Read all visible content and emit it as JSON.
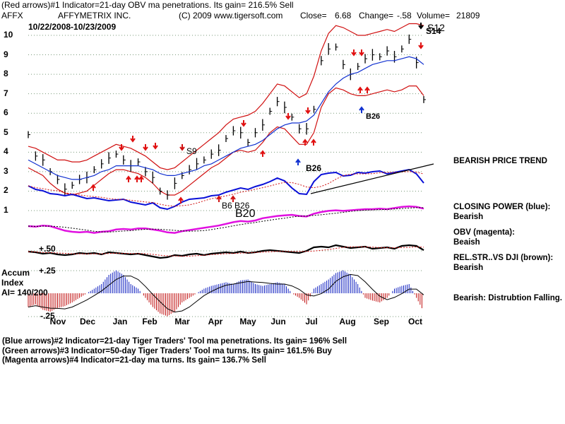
{
  "header": {
    "line1": "(Red arrows)#1 Indicator=21-day OBV ma penetrations. Its gain= 216.5% Sell",
    "ticker": "AFFX",
    "company": "AFFYMETRIX INC.",
    "copyright": "(C) 2009 www.tigersoft.com",
    "close_label": "Close=",
    "close_value": "6.68",
    "change_label": "Change=",
    "change_value": "-.58",
    "volume_label": "Volume=",
    "volume_value": "21809",
    "date_range": "10/22/2008-10/23/2009"
  },
  "side_panel": {
    "price_trend": "BEARISH PRICE TREND",
    "closing_power_label": "CLOSING POWER (blue):",
    "closing_power_value": "Bearish",
    "obv_label": "OBV (magenta):",
    "obv_value": "Beaish",
    "relstr_label": "REL.STR..VS DJI (brown):",
    "relstr_value": "Bearish",
    "accum_status": "Bearish:  Distrubtion Falling."
  },
  "footer": {
    "line1": "(Blue arrows)#2 Indicator=21-day Tiger Traders' Tool ma penetrations. Its gain= 196% Sell",
    "line2": "(Green arrows)#3 Indicator=50-day Tiger Traders' Tool ma turns. Its gain= 161.5% Buy",
    "line3": "(Magenta arrows)#4 Indicator=21-day ma turns. Its gain= 136.7% Sell"
  },
  "accum_panel": {
    "label1": "Accum",
    "label2": "Index",
    "label3": "AI= 140/200",
    "level_top": "+.25",
    "level_bottom": "-.25",
    "relstr_level": "+.50"
  },
  "chart_data": {
    "type": "line",
    "title": "AFFYMETRIX INC.",
    "x_ticks": [
      "Nov",
      "Dec",
      "Jan",
      "Feb",
      "Mar",
      "Apr",
      "May",
      "Jun",
      "Jul",
      "Aug",
      "Sep",
      "Oct"
    ],
    "y_ticks": [
      1,
      2,
      3,
      4,
      5,
      6,
      7,
      8,
      9,
      10
    ],
    "ylim": [
      0.5,
      10.5
    ],
    "grid": true,
    "price_close_weekly": [
      4.9,
      3.8,
      3.6,
      3.0,
      2.6,
      2.1,
      2.3,
      2.6,
      2.7,
      3.1,
      3.4,
      3.7,
      3.9,
      3.6,
      3.3,
      3.5,
      3.0,
      2.7,
      2.0,
      1.8,
      2.4,
      2.8,
      3.1,
      3.4,
      3.6,
      3.9,
      4.1,
      4.7,
      5.1,
      5.0,
      4.5,
      5.0,
      5.4,
      6.1,
      6.6,
      6.3,
      5.8,
      5.2,
      5.2,
      6.2,
      8.7,
      9.3,
      9.4,
      8.5,
      8.0,
      8.4,
      8.8,
      9.0,
      8.9,
      9.2,
      8.9,
      9.3,
      9.8,
      8.6,
      6.7
    ],
    "bollinger_upper_weekly": [
      4.3,
      4.2,
      4.0,
      3.8,
      3.6,
      3.6,
      3.5,
      3.5,
      3.6,
      3.8,
      4.0,
      4.2,
      4.4,
      4.3,
      4.2,
      4.0,
      3.8,
      3.5,
      3.2,
      3.1,
      3.2,
      3.5,
      3.8,
      4.1,
      4.4,
      4.7,
      5.0,
      5.4,
      5.7,
      5.8,
      5.9,
      6.1,
      6.5,
      7.0,
      7.5,
      7.4,
      7.1,
      6.8,
      7.0,
      7.9,
      9.2,
      10.1,
      10.5,
      10.4,
      10.2,
      10.0,
      10.0,
      10.1,
      10.2,
      10.3,
      10.2,
      10.4,
      10.6,
      10.6,
      10.5
    ],
    "bollinger_lower_weekly": [
      3.2,
      3.0,
      2.8,
      2.4,
      2.1,
      1.9,
      1.8,
      1.9,
      2.0,
      2.3,
      2.6,
      2.9,
      3.1,
      3.1,
      3.0,
      2.9,
      2.7,
      2.4,
      2.0,
      1.8,
      1.8,
      2.0,
      2.3,
      2.6,
      2.9,
      3.2,
      3.4,
      3.7,
      4.0,
      4.1,
      4.0,
      4.1,
      4.5,
      5.0,
      5.3,
      5.2,
      4.8,
      4.4,
      4.4,
      5.0,
      6.3,
      7.0,
      7.3,
      7.2,
      7.0,
      6.9,
      6.9,
      7.0,
      7.1,
      7.2,
      7.1,
      7.2,
      7.4,
      7.4,
      6.9
    ],
    "ma_blue_weekly": [
      3.6,
      3.4,
      3.2,
      3.0,
      2.8,
      2.7,
      2.6,
      2.6,
      2.7,
      2.8,
      3.0,
      3.1,
      3.3,
      3.3,
      3.3,
      3.3,
      3.2,
      3.1,
      2.9,
      2.8,
      2.8,
      2.9,
      3.0,
      3.1,
      3.3,
      3.4,
      3.6,
      3.8,
      4.0,
      4.2,
      4.3,
      4.4,
      4.6,
      4.9,
      5.2,
      5.4,
      5.5,
      5.5,
      5.6,
      5.9,
      6.5,
      7.1,
      7.5,
      7.8,
      8.0,
      8.1,
      8.3,
      8.5,
      8.6,
      8.7,
      8.7,
      8.8,
      8.9,
      8.8,
      8.5
    ],
    "closing_power_blue": [
      0.9,
      0.4,
      0.2,
      -0.2,
      -0.3,
      -0.5,
      -0.3,
      -0.6,
      -0.9,
      -0.8,
      -1.0,
      -1.2,
      -1.1,
      -1.0,
      -1.4,
      -1.6,
      -1.8,
      -1.5,
      -2.2,
      -2.4,
      -2.0,
      -1.4,
      -1.0,
      -0.9,
      -0.8,
      -0.5,
      -0.4,
      0.0,
      0.3,
      0.6,
      0.4,
      0.8,
      1.1,
      1.5,
      2.0,
      1.6,
      0.6,
      -0.2,
      -0.3,
      1.5,
      2.5,
      2.7,
      2.8,
      2.3,
      2.4,
      2.8,
      2.7,
      2.9,
      3.0,
      2.6,
      2.8,
      3.0,
      3.2,
      2.6,
      1.3
    ],
    "obv_magenta": [
      -3.0,
      -3.1,
      -2.9,
      -3.0,
      -3.4,
      -3.8,
      -4.0,
      -4.1,
      -4.0,
      -4.2,
      -4.0,
      -3.9,
      -3.6,
      -3.5,
      -3.6,
      -3.4,
      -3.4,
      -3.6,
      -3.8,
      -4.1,
      -4.2,
      -3.9,
      -3.7,
      -3.5,
      -3.3,
      -3.1,
      -2.9,
      -2.6,
      -2.3,
      -2.1,
      -2.2,
      -2.0,
      -1.6,
      -1.4,
      -1.2,
      -1.1,
      -1.0,
      -1.2,
      -1.3,
      -0.8,
      -0.5,
      -0.3,
      -0.2,
      -0.3,
      -0.2,
      -0.1,
      0.0,
      0.0,
      0.1,
      0.0,
      0.2,
      0.4,
      0.5,
      0.4,
      0.1
    ],
    "relstr_brown": [
      -1.1,
      -1.2,
      -1.4,
      -1.3,
      -1.5,
      -1.6,
      -1.5,
      -1.3,
      -1.4,
      -1.3,
      -1.5,
      -1.2,
      -1.3,
      -1.4,
      -1.5,
      -1.4,
      -1.6,
      -1.8,
      -2.0,
      -1.9,
      -1.6,
      -1.7,
      -1.5,
      -1.4,
      -1.6,
      -1.4,
      -1.3,
      -1.2,
      -1.3,
      -1.1,
      -1.3,
      -1.2,
      -1.0,
      -0.9,
      -1.0,
      -1.1,
      -1.2,
      -1.3,
      -1.0,
      -0.5,
      -0.4,
      -0.5,
      -0.2,
      -0.4,
      -0.6,
      -0.5,
      -0.4,
      -0.7,
      -0.6,
      -0.5,
      -0.7,
      -0.3,
      -0.2,
      -0.3,
      -0.9
    ],
    "accum_index": [
      -0.15,
      -0.12,
      -0.18,
      -0.2,
      -0.16,
      -0.14,
      -0.1,
      -0.05,
      0.0,
      0.05,
      0.1,
      0.2,
      0.25,
      0.2,
      0.1,
      0.05,
      -0.05,
      -0.15,
      -0.22,
      -0.25,
      -0.2,
      -0.1,
      -0.05,
      0.0,
      0.05,
      0.08,
      0.1,
      0.12,
      0.1,
      0.14,
      0.15,
      0.1,
      0.08,
      0.1,
      0.12,
      0.1,
      0.0,
      -0.05,
      -0.12,
      0.05,
      0.1,
      0.15,
      0.22,
      0.25,
      0.2,
      0.1,
      -0.05,
      -0.08,
      -0.1,
      -0.05,
      0.05,
      0.08,
      0.1,
      -0.05,
      -0.2
    ],
    "annotations": [
      {
        "text": "S9",
        "x": "Mar",
        "y": 4.0
      },
      {
        "text": "B26",
        "x": "Jul",
        "y": 3.0
      },
      {
        "text": "B26",
        "x": "Jul",
        "y": 5.7
      },
      {
        "text": "B6 B26",
        "x": "Apr",
        "y": 1.25
      },
      {
        "text": "B20",
        "x": "Apr",
        "y": 0.95
      },
      {
        "text": "S12",
        "x": "Oct",
        "y": 10.3
      },
      {
        "text": "S14",
        "x": "Oct",
        "y": 9.9
      }
    ]
  }
}
